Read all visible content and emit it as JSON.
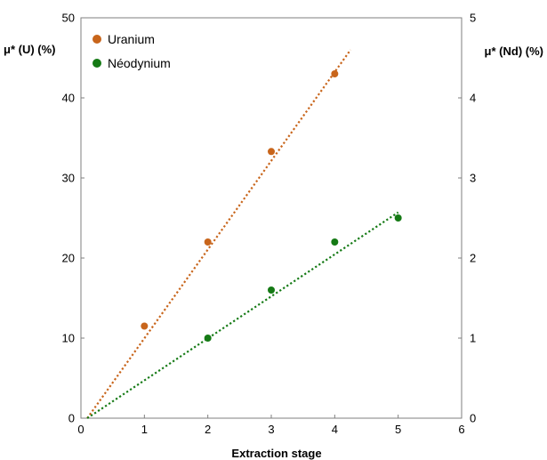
{
  "chart_data": {
    "type": "scatter",
    "xlabel": "Extraction stage",
    "ylabel_left": "μ* (U) (%)",
    "ylabel_right": "μ* (Nd) (%)",
    "xlim": [
      0,
      6
    ],
    "ylim_left": [
      0,
      50
    ],
    "ylim_right": [
      0,
      5
    ],
    "x_ticks": [
      0,
      1,
      2,
      3,
      4,
      5,
      6
    ],
    "y_ticks_left": [
      0,
      10,
      20,
      30,
      40,
      50
    ],
    "y_ticks_right": [
      0,
      1,
      2,
      3,
      4,
      5
    ],
    "grid": false,
    "legend_position": "top-left",
    "series": [
      {
        "name": "Uranium",
        "axis": "left",
        "color": "#c8651b",
        "x": [
          1,
          2,
          3,
          4
        ],
        "y": [
          11.5,
          22,
          33.3,
          43
        ],
        "trendline": {
          "x": [
            0.1,
            4.25
          ],
          "y": [
            0,
            46
          ]
        }
      },
      {
        "name": "Néodynium",
        "axis": "right",
        "color": "#157a15",
        "x": [
          2,
          3,
          4,
          5
        ],
        "y": [
          1.0,
          1.6,
          2.2,
          2.5
        ],
        "trendline": {
          "x": [
            0.1,
            5
          ],
          "y": [
            0,
            2.57
          ]
        }
      }
    ]
  }
}
